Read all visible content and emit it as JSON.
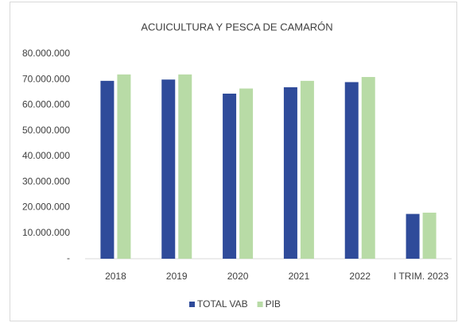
{
  "chart_data": {
    "type": "bar",
    "title": "ACUICULTURA Y PESCA DE CAMARÓN",
    "categories": [
      "2018",
      "2019",
      "2020",
      "2021",
      "2022",
      "I TRIM. 2023"
    ],
    "series": [
      {
        "name": "TOTAL VAB",
        "color": "#2f4b9a",
        "values": [
          69500000,
          70000000,
          64500000,
          67000000,
          69000000,
          17500000
        ]
      },
      {
        "name": "PIB",
        "color": "#b8dba6",
        "values": [
          72000000,
          72000000,
          66500000,
          69500000,
          71000000,
          18000000
        ]
      }
    ],
    "ylim": [
      0,
      80000000
    ],
    "yticks": [
      {
        "value": 0,
        "label": "-"
      },
      {
        "value": 10000000,
        "label": "10.000.000"
      },
      {
        "value": 20000000,
        "label": "20.000.000"
      },
      {
        "value": 30000000,
        "label": "30.000.000"
      },
      {
        "value": 40000000,
        "label": "40.000.000"
      },
      {
        "value": 50000000,
        "label": "50.000.000"
      },
      {
        "value": 60000000,
        "label": "60.000.000"
      },
      {
        "value": 70000000,
        "label": "70.000.000"
      },
      {
        "value": 80000000,
        "label": "80.000.000"
      }
    ],
    "grid": false,
    "legend": "bottom"
  }
}
